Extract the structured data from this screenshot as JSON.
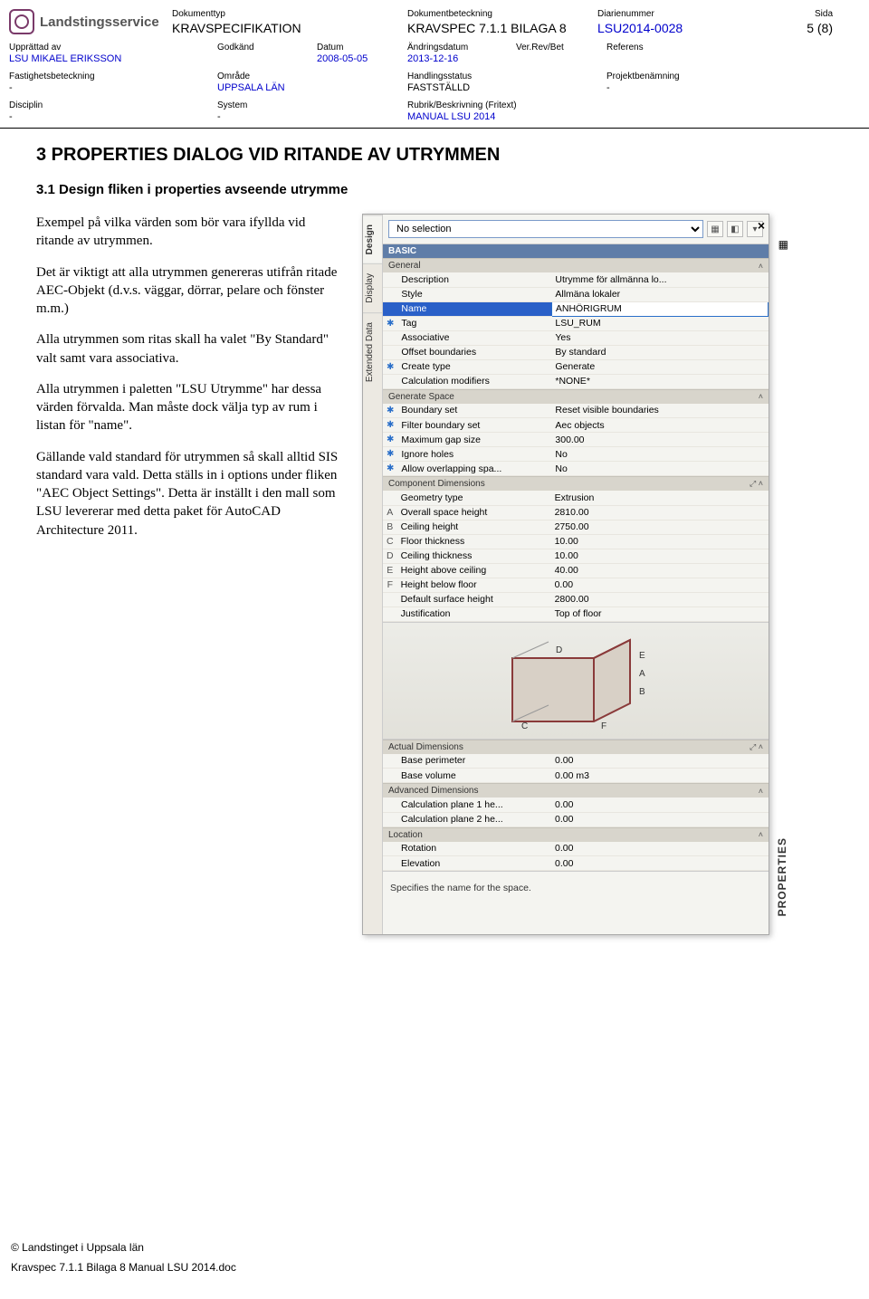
{
  "header": {
    "logo_text": "Landstingsservice",
    "dokumenttyp_label": "Dokumenttyp",
    "dokumenttyp_value": "KRAVSPECIFIKATION",
    "dokbet_label": "Dokumentbeteckning",
    "dokbet_value": "KRAVSPEC 7.1.1 BILAGA 8",
    "diarie_label": "Diarienummer",
    "diarie_value": "LSU2014-0028",
    "sida_label": "Sida",
    "sida_value": "5 (8)",
    "upprattad_label": "Upprättad av",
    "upprattad_value": "LSU MIKAEL ERIKSSON",
    "godkand_label": "Godkänd",
    "godkand_value": "",
    "datum_label": "Datum",
    "datum_value": "2008-05-05",
    "andring_label": "Ändringsdatum",
    "andring_value": "2013-12-16",
    "verrev_label": "Ver.Rev/Bet",
    "verrev_value": "",
    "referens_label": "Referens",
    "referens_value": "",
    "fastighet_label": "Fastighetsbeteckning",
    "fastighet_value": "-",
    "omrade_label": "Område",
    "omrade_value": "UPPSALA LÄN",
    "handling_label": "Handlingsstatus",
    "handling_value": "FASTSTÄLLD",
    "projekt_label": "Projektbenämning",
    "projekt_value": "-",
    "disciplin_label": "Disciplin",
    "disciplin_value": "-",
    "system_label": "System",
    "system_value": "-",
    "rubrik_label": "Rubrik/Beskrivning (Fritext)",
    "rubrik_value": "MANUAL LSU 2014"
  },
  "body": {
    "h1": "3   PROPERTIES DIALOG VID RITANDE AV UTRYMMEN",
    "h2": "3.1   Design fliken i properties avseende utrymme",
    "p1": "Exempel på vilka värden som bör vara ifyllda vid ritande av utrymmen.",
    "p2": "Det är viktigt att alla utrymmen genereras utifrån ritade AEC-Objekt (d.v.s. väggar, dörrar, pelare och fönster m.m.)",
    "p3": "Alla utrymmen som ritas skall ha valet \"By Standard\" valt samt vara associativa.",
    "p4": "Alla utrymmen i paletten \"LSU Utrymme\" har dessa värden förvalda. Man måste dock välja typ av rum i listan för \"name\".",
    "p5": "Gällande vald standard för utrymmen så skall alltid SIS standard vara vald. Detta ställs in i options under fliken \"AEC Object Settings\". Detta är inställt i den mall som LSU levererar med detta paket för AutoCAD Architecture 2011."
  },
  "panel": {
    "selection": "No selection",
    "tabs": {
      "design": "Design",
      "display": "Display",
      "extended": "Extended Data"
    },
    "basic": "BASIC",
    "sections": {
      "general": "General",
      "generate_space": "Generate Space",
      "component_dimensions": "Component Dimensions",
      "actual_dimensions": "Actual Dimensions",
      "advanced_dimensions": "Advanced Dimensions",
      "location": "Location"
    },
    "general_rows": [
      {
        "label": "Description",
        "value": "Utrymme för allmänna lo..."
      },
      {
        "label": "Style",
        "value": "Allmäna lokaler"
      },
      {
        "label": "Name",
        "value": "ANHÖRIGRUM",
        "selected": true
      },
      {
        "label": "Tag",
        "value": "LSU_RUM",
        "star": true
      },
      {
        "label": "Associative",
        "value": "Yes"
      },
      {
        "label": "Offset boundaries",
        "value": "By standard"
      },
      {
        "label": "Create type",
        "value": "Generate",
        "star": true
      },
      {
        "label": "Calculation modifiers",
        "value": "*NONE*"
      }
    ],
    "generate_rows": [
      {
        "label": "Boundary set",
        "value": "Reset visible boundaries",
        "star": true
      },
      {
        "label": "Filter boundary set",
        "value": "Aec objects",
        "star": true
      },
      {
        "label": "Maximum gap size",
        "value": "300.00",
        "star": true
      },
      {
        "label": "Ignore holes",
        "value": "No",
        "star": true
      },
      {
        "label": "Allow overlapping spa...",
        "value": "No",
        "star": true
      }
    ],
    "component_rows": [
      {
        "letter": "",
        "label": "Geometry type",
        "value": "Extrusion"
      },
      {
        "letter": "A",
        "label": "Overall space height",
        "value": "2810.00"
      },
      {
        "letter": "B",
        "label": "Ceiling height",
        "value": "2750.00"
      },
      {
        "letter": "C",
        "label": "Floor thickness",
        "value": "10.00"
      },
      {
        "letter": "D",
        "label": "Ceiling thickness",
        "value": "10.00"
      },
      {
        "letter": "E",
        "label": "Height above ceiling",
        "value": "40.00"
      },
      {
        "letter": "F",
        "label": "Height below floor",
        "value": "0.00"
      },
      {
        "letter": "",
        "label": "Default surface height",
        "value": "2800.00"
      },
      {
        "letter": "",
        "label": "Justification",
        "value": "Top of floor"
      }
    ],
    "actual_rows": [
      {
        "label": "Base perimeter",
        "value": "0.00"
      },
      {
        "label": "Base volume",
        "value": "0.00 m3"
      }
    ],
    "advanced_rows": [
      {
        "label": "Calculation plane 1 he...",
        "value": "0.00"
      },
      {
        "label": "Calculation plane 2 he...",
        "value": "0.00"
      }
    ],
    "location_rows": [
      {
        "label": "Rotation",
        "value": "0.00"
      },
      {
        "label": "Elevation",
        "value": "0.00"
      }
    ],
    "hint": "Specifies the name for the space.",
    "vertical_label": "PROPERTIES"
  },
  "footer": {
    "copyright": "© Landstinget i Uppsala län",
    "filename": "Kravspec 7.1.1 Bilaga 8 Manual LSU 2014.doc"
  },
  "colors": {
    "link_blue": "#0000cc",
    "panel_bg": "#f4f4f0",
    "group_header_bg": "#5f7da8",
    "sub_header_bg": "#d8d5cc",
    "selected_row_bg": "#2a60c8"
  }
}
